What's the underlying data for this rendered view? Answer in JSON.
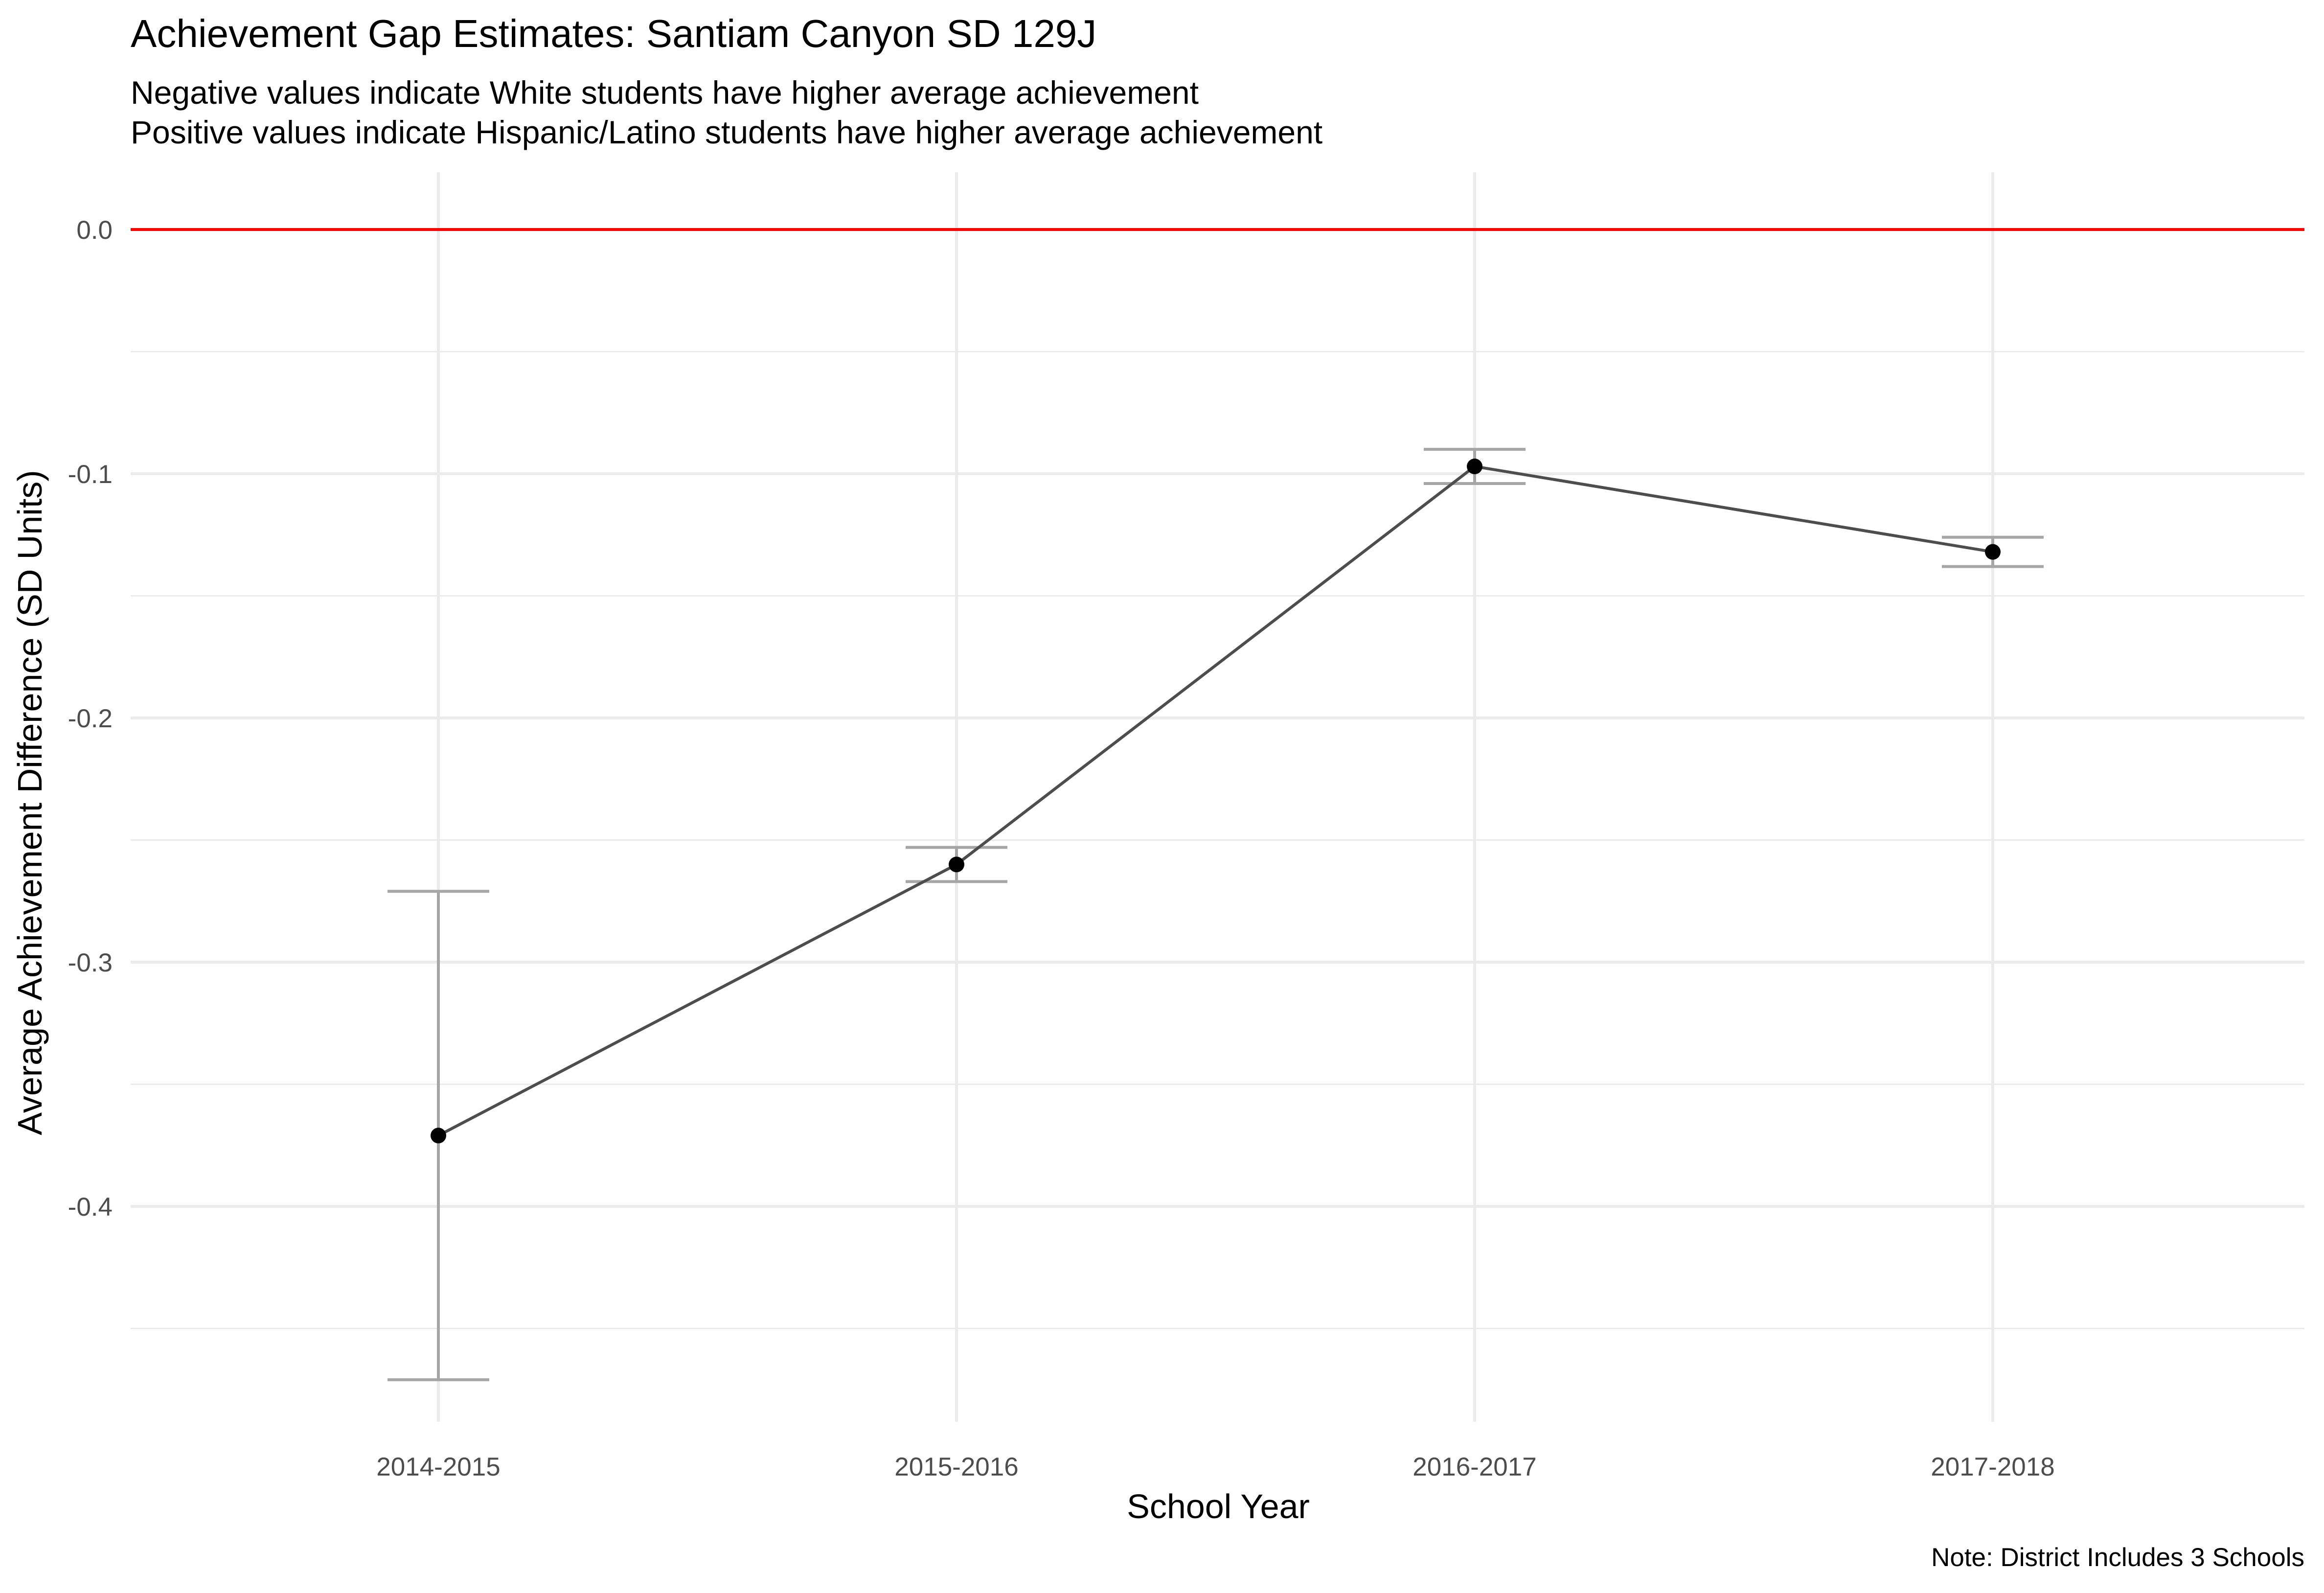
{
  "chart_data": {
    "type": "line",
    "title": "Achievement Gap Estimates: Santiam Canyon SD 129J",
    "subtitle_lines": [
      "Negative values indicate White students have higher average achievement",
      "Positive values indicate Hispanic/Latino students have higher average achievement"
    ],
    "xlabel": "School Year",
    "ylabel": "Average Achievement Difference (SD Units)",
    "caption": "Note: District Includes 3 Schools",
    "categories": [
      "2014-2015",
      "2015-2016",
      "2016-2017",
      "2017-2018"
    ],
    "series": [
      {
        "values": [
          -0.371,
          -0.26,
          -0.097,
          -0.132
        ],
        "lower": [
          -0.471,
          -0.267,
          -0.104,
          -0.138
        ],
        "upper": [
          -0.271,
          -0.253,
          -0.09,
          -0.126
        ]
      }
    ],
    "reference_line": {
      "y": 0.0,
      "color": "#ff0000"
    },
    "yticks": [
      0.0,
      -0.1,
      -0.2,
      -0.3,
      -0.4
    ],
    "ytick_labels": [
      "0.0",
      "-0.1",
      "-0.2",
      "-0.3",
      "-0.4"
    ],
    "ylim": [
      -0.49,
      0.023
    ],
    "grid": true,
    "colors": {
      "line": "#4d4d4d",
      "point": "#000000",
      "errorbar": "#a6a6a6",
      "grid": "#ebebeb"
    }
  }
}
